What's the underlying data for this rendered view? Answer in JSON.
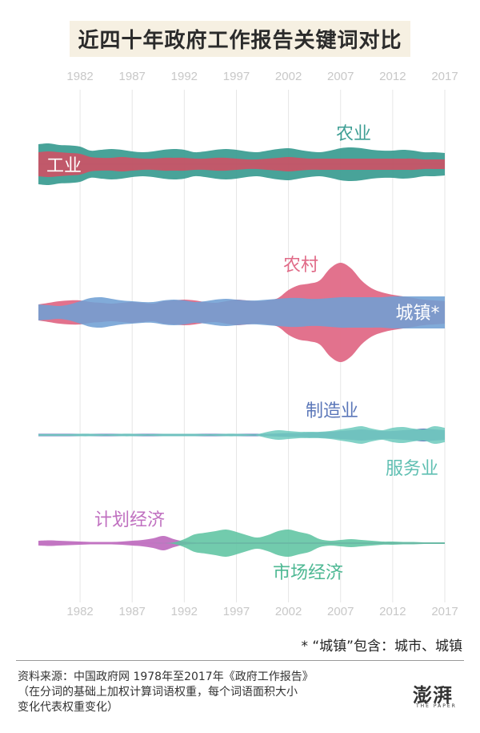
{
  "title": "近四十年政府工作报告关键词对比",
  "note": "* “城镇”包含：城市、城镇",
  "source": {
    "line1": "资料来源：中国政府网 1978年至2017年《政府工作报告》",
    "line2": "（在分词的基础上加权计算词语权重，每个词语面积大小",
    "line3": "变化代表权重变化）"
  },
  "logo": {
    "text": "澎湃",
    "sub": "THE PAPER"
  },
  "chart_data": {
    "type": "area",
    "subtype": "streamgraph",
    "x_ticks": [
      "1982",
      "1987",
      "1992",
      "1997",
      "2002",
      "2007",
      "2012",
      "2017"
    ],
    "x_range": [
      1978,
      2017
    ],
    "years": [
      1978,
      1979,
      1980,
      1981,
      1982,
      1983,
      1984,
      1985,
      1986,
      1987,
      1988,
      1989,
      1990,
      1991,
      1992,
      1993,
      1994,
      1995,
      1996,
      1997,
      1998,
      1999,
      2000,
      2001,
      2002,
      2003,
      2004,
      2005,
      2006,
      2007,
      2008,
      2009,
      2010,
      2011,
      2012,
      2013,
      2014,
      2015,
      2016,
      2017
    ],
    "grid": true,
    "panels": [
      {
        "series": [
          {
            "name": "农业",
            "color": "#3e9e94",
            "label_position": "top-right",
            "values": [
              50,
              52,
              48,
              47,
              44,
              34,
              36,
              38,
              36,
              32,
              30,
              32,
              36,
              38,
              36,
              30,
              32,
              36,
              38,
              36,
              32,
              30,
              34,
              38,
              40,
              36,
              32,
              30,
              34,
              40,
              42,
              40,
              36,
              34,
              34,
              36,
              34,
              30,
              30,
              28
            ]
          },
          {
            "name": "工业",
            "color": "#d24f63",
            "label_position": "left",
            "values": [
              30,
              32,
              30,
              28,
              26,
              18,
              16,
              16,
              18,
              16,
              14,
              14,
              16,
              16,
              16,
              14,
              14,
              16,
              16,
              14,
              12,
              12,
              14,
              16,
              18,
              16,
              14,
              14,
              14,
              14,
              14,
              14,
              14,
              14,
              14,
              14,
              14,
              12,
              12,
              12
            ]
          }
        ]
      },
      {
        "series": [
          {
            "name": "农村",
            "color": "#e06a87",
            "label_position": "top",
            "values": [
              20,
              24,
              28,
              30,
              30,
              26,
              24,
              22,
              24,
              26,
              24,
              22,
              28,
              30,
              32,
              30,
              26,
              24,
              28,
              32,
              30,
              28,
              30,
              36,
              56,
              68,
              72,
              80,
              110,
              124,
              110,
              80,
              60,
              50,
              44,
              40,
              36,
              32,
              30,
              28
            ]
          },
          {
            "name": "城镇*",
            "color": "#6f9fd4",
            "label_position": "right",
            "values": [
              20,
              18,
              16,
              20,
              28,
              36,
              38,
              34,
              30,
              28,
              26,
              26,
              30,
              32,
              30,
              26,
              28,
              32,
              34,
              32,
              30,
              30,
              32,
              34,
              36,
              36,
              34,
              34,
              36,
              38,
              38,
              38,
              38,
              38,
              40,
              40,
              40,
              40,
              40,
              40
            ]
          }
        ]
      },
      {
        "series": [
          {
            "name": "制造业",
            "color": "#5b77b9",
            "label_position": "top-right",
            "values": [
              3,
              3,
              3,
              3,
              3,
              3,
              3,
              3,
              3,
              3,
              3,
              3,
              3,
              3,
              3,
              3,
              3,
              3,
              3,
              3,
              3,
              3,
              3,
              4,
              5,
              5,
              6,
              7,
              8,
              10,
              12,
              14,
              12,
              10,
              10,
              12,
              14,
              16,
              14,
              12
            ]
          },
          {
            "name": "服务业",
            "color": "#72ccbf",
            "label_position": "bottom-right",
            "values": [
              2,
              2,
              2,
              2,
              3,
              3,
              2,
              2,
              3,
              3,
              2,
              2,
              3,
              3,
              3,
              3,
              2,
              2,
              3,
              3,
              2,
              2,
              8,
              12,
              10,
              8,
              8,
              8,
              10,
              14,
              18,
              22,
              16,
              12,
              18,
              20,
              16,
              14,
              22,
              18
            ]
          }
        ]
      },
      {
        "series": [
          {
            "name": "计划经济",
            "color": "#c070c0",
            "label_position": "top-left",
            "values": [
              6,
              7,
              6,
              5,
              4,
              3,
              3,
              3,
              4,
              6,
              8,
              12,
              18,
              10,
              4,
              2,
              2,
              2,
              2,
              2,
              2,
              2,
              2,
              2,
              2,
              2,
              2,
              2,
              2,
              2,
              2,
              2,
              2,
              2,
              2,
              2,
              2,
              2,
              2,
              2
            ]
          },
          {
            "name": "市场经济",
            "color": "#5ec4a2",
            "label_position": "bottom",
            "values": [
              0,
              0,
              0,
              0,
              0,
              0,
              0,
              0,
              0,
              0,
              0,
              0,
              0,
              2,
              10,
              22,
              26,
              30,
              34,
              28,
              20,
              14,
              20,
              30,
              34,
              28,
              22,
              10,
              6,
              8,
              10,
              8,
              6,
              4,
              4,
              3,
              3,
              2,
              2,
              2
            ]
          }
        ]
      }
    ]
  }
}
